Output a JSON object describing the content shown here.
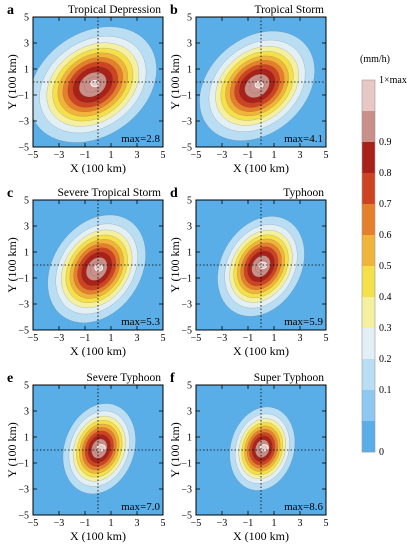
{
  "figure": {
    "colorbar": {
      "unit": "(mm/h)",
      "top_label": "1×max",
      "levels": [
        0,
        0.1,
        0.2,
        0.3,
        0.4,
        0.5,
        0.6,
        0.7,
        0.8,
        0.9,
        1.0
      ],
      "tick_labels": [
        "0",
        "0.1",
        "0.2",
        "0.3",
        "0.4",
        "0.5",
        "0.6",
        "0.7",
        "0.8",
        "0.9"
      ],
      "colors": [
        "#5aaee8",
        "#8cc8f0",
        "#b9def4",
        "#e2eff5",
        "#f4f0a0",
        "#f4e04a",
        "#f0b43a",
        "#e4802c",
        "#cc4422",
        "#a8221a",
        "#c89088",
        "#e8c8c4"
      ]
    }
  },
  "chart_data": [
    {
      "type": "heatmap",
      "panel": "a",
      "title": "Tropical Depression",
      "annotation": "max=2.8",
      "xlabel": "X (100 km)",
      "ylabel": "Y (100 km)",
      "x_ticks": [
        "−5",
        "−3",
        "−1",
        "1",
        "3",
        "5"
      ],
      "y_ticks": [
        "5",
        "3",
        "1",
        "−1",
        "−3",
        "−5"
      ],
      "xlim": [
        -5,
        5
      ],
      "ylim": [
        -5,
        5
      ],
      "grid": "dotted crosshair at x=0, y=0",
      "center": [
        -0.4,
        -0.2
      ],
      "peak_fraction": 1.0,
      "spread": 2.6,
      "aspect": 1.2,
      "tilt_deg": 35
    },
    {
      "type": "heatmap",
      "panel": "b",
      "title": "Tropical Storm",
      "annotation": "max=4.1",
      "xlabel": "X (100 km)",
      "ylabel": "Y (100 km)",
      "x_ticks": [
        "−5",
        "−3",
        "−1",
        "1",
        "3",
        "5"
      ],
      "y_ticks": [
        "5",
        "3",
        "1",
        "−1",
        "−3",
        "−5"
      ],
      "xlim": [
        -5,
        5
      ],
      "ylim": [
        -5,
        5
      ],
      "grid": "dotted crosshair at x=0, y=0",
      "center": [
        -0.3,
        -0.3
      ],
      "peak_fraction": 1.0,
      "spread": 2.4,
      "aspect": 1.25,
      "tilt_deg": 40
    },
    {
      "type": "heatmap",
      "panel": "c",
      "title": "Severe Tropical Storm",
      "annotation": "max=5.3",
      "xlabel": "X (100 km)",
      "ylabel": "Y (100 km)",
      "x_ticks": [
        "−5",
        "−3",
        "−1",
        "1",
        "3",
        "5"
      ],
      "y_ticks": [
        "5",
        "3",
        "1",
        "−1",
        "−3",
        "−5"
      ],
      "xlim": [
        -5,
        5
      ],
      "ylim": [
        -5,
        5
      ],
      "grid": "dotted crosshair at x=0, y=0",
      "center": [
        -0.1,
        -0.3
      ],
      "peak_fraction": 1.0,
      "spread": 2.2,
      "aspect": 1.35,
      "tilt_deg": 55
    },
    {
      "type": "heatmap",
      "panel": "d",
      "title": "Typhoon",
      "annotation": "max=5.9",
      "xlabel": "X (100 km)",
      "ylabel": "Y (100 km)",
      "x_ticks": [
        "−5",
        "−3",
        "−1",
        "1",
        "3",
        "5"
      ],
      "y_ticks": [
        "5",
        "3",
        "1",
        "−1",
        "−3",
        "−5"
      ],
      "xlim": [
        -5,
        5
      ],
      "ylim": [
        -5,
        5
      ],
      "grid": "dotted crosshair at x=0, y=0",
      "center": [
        0.0,
        -0.1
      ],
      "peak_fraction": 1.0,
      "spread": 2.0,
      "aspect": 1.35,
      "tilt_deg": 60
    },
    {
      "type": "heatmap",
      "panel": "e",
      "title": "Severe Typhoon",
      "annotation": "max=7.0",
      "xlabel": "X (100 km)",
      "ylabel": "Y (100 km)",
      "x_ticks": [
        "−5",
        "−3",
        "−1",
        "1",
        "3",
        "5"
      ],
      "y_ticks": [
        "5",
        "3",
        "1",
        "−1",
        "−3",
        "−5"
      ],
      "xlim": [
        -5,
        5
      ],
      "ylim": [
        -5,
        5
      ],
      "grid": "dotted crosshair at x=0, y=0",
      "center": [
        0.1,
        0.1
      ],
      "peak_fraction": 1.0,
      "spread": 1.75,
      "aspect": 1.15,
      "tilt_deg": 70
    },
    {
      "type": "heatmap",
      "panel": "f",
      "title": "Super Typhoon",
      "annotation": "max=8.6",
      "xlabel": "X (100 km)",
      "ylabel": "Y (100 km)",
      "x_ticks": [
        "−5",
        "−3",
        "−1",
        "1",
        "3",
        "5"
      ],
      "y_ticks": [
        "5",
        "3",
        "1",
        "−1",
        "−3",
        "−5"
      ],
      "xlim": [
        -5,
        5
      ],
      "ylim": [
        -5,
        5
      ],
      "grid": "dotted crosshair at x=0, y=0",
      "center": [
        0.1,
        0.1
      ],
      "peak_fraction": 1.0,
      "spread": 1.6,
      "aspect": 1.1,
      "tilt_deg": 75
    }
  ]
}
